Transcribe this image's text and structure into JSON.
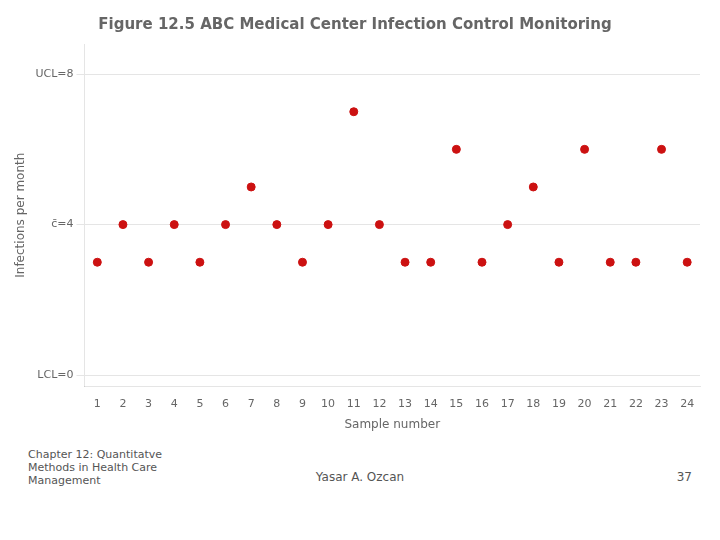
{
  "chart_data": {
    "type": "scatter",
    "title": "Figure 12.5 ABC Medical Center Infection Control Monitoring",
    "xlabel": "Sample number",
    "ylabel": "Infections per month",
    "x": [
      1,
      2,
      3,
      4,
      5,
      6,
      7,
      8,
      9,
      10,
      11,
      12,
      13,
      14,
      15,
      16,
      17,
      18,
      19,
      20,
      21,
      22,
      23,
      24
    ],
    "values": [
      3,
      4,
      3,
      4,
      3,
      4,
      5,
      4,
      3,
      4,
      7,
      4,
      3,
      3,
      6,
      3,
      4,
      5,
      3,
      6,
      3,
      3,
      6,
      3
    ],
    "color": "#cc1111",
    "marker": "circle",
    "xlim": [
      0.5,
      24.5
    ],
    "xticks": [
      1,
      2,
      3,
      4,
      5,
      6,
      7,
      8,
      9,
      10,
      11,
      12,
      13,
      14,
      15,
      16,
      17,
      18,
      19,
      20,
      21,
      22,
      23,
      24
    ],
    "ylim": [
      -0.3,
      8.8
    ],
    "yticks": [
      {
        "value": 0,
        "label": "LCL=0"
      },
      {
        "value": 4,
        "label": "c̄=4"
      },
      {
        "value": 8,
        "label": "UCL=8"
      }
    ],
    "grid": true,
    "annotations": [
      "Chapter 12: Quantitatve\nMethods in Health Care\nManagement",
      "Yasar A. Ozcan",
      "37"
    ]
  }
}
